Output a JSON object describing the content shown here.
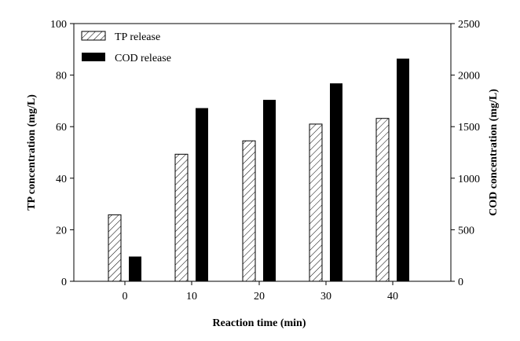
{
  "chart_data": {
    "type": "bar",
    "xlabel": "Reaction time (min)",
    "ylabel_left": "TP concentration (mg/L)",
    "ylabel_right": "COD concentration (mg/L)",
    "categories": [
      "0",
      "10",
      "20",
      "30",
      "40"
    ],
    "ylim_left": [
      0,
      100
    ],
    "ylim_right": [
      0,
      2500
    ],
    "yticks_left": [
      0,
      20,
      40,
      60,
      80,
      100
    ],
    "yticks_right": [
      0,
      500,
      1000,
      1500,
      2000,
      2500
    ],
    "grid": false,
    "legend_position": "top-left",
    "series": [
      {
        "name": "TP release",
        "axis": "left",
        "style": "hatched",
        "values": [
          25.8,
          49.3,
          54.5,
          61.0,
          63.2
        ]
      },
      {
        "name": "COD release",
        "axis": "right",
        "style": "solid",
        "values": [
          240,
          1680,
          1760,
          1920,
          2160
        ]
      }
    ],
    "colors": {
      "hatch_stroke": "#000000",
      "solid_fill": "#000000",
      "hatch_fill": "#ffffff"
    }
  }
}
